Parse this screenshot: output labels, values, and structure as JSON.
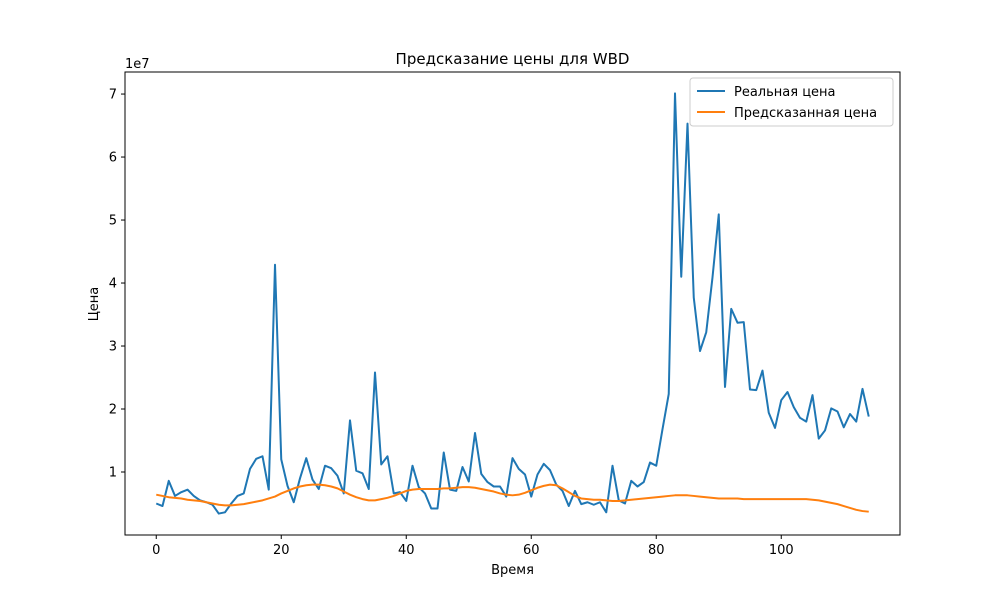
{
  "chart_data": {
    "type": "line",
    "title": "Предсказание цены для WBD",
    "xlabel": "Время",
    "ylabel": "Цена",
    "y_offset_label": "1e7",
    "xlim": [
      -5,
      119
    ],
    "ylim": [
      0,
      7.35
    ],
    "x_ticks": [
      0,
      20,
      40,
      60,
      80,
      100
    ],
    "y_ticks": [
      1,
      2,
      3,
      4,
      5,
      6,
      7
    ],
    "grid": false,
    "legend_position": "top-right",
    "series": [
      {
        "name": "Реальная цена",
        "color": "#1f77b4",
        "values": [
          0.5,
          0.46,
          0.86,
          0.62,
          0.68,
          0.72,
          0.62,
          0.55,
          0.52,
          0.48,
          0.34,
          0.36,
          0.5,
          0.62,
          0.66,
          1.05,
          1.21,
          1.25,
          0.72,
          4.29,
          1.2,
          0.78,
          0.52,
          0.9,
          1.22,
          0.88,
          0.73,
          1.1,
          1.06,
          0.94,
          0.66,
          1.82,
          1.02,
          0.98,
          0.73,
          2.58,
          1.12,
          1.25,
          0.66,
          0.68,
          0.54,
          1.1,
          0.76,
          0.66,
          0.42,
          0.42,
          1.31,
          0.72,
          0.7,
          1.08,
          0.85,
          1.62,
          0.97,
          0.84,
          0.77,
          0.77,
          0.61,
          1.22,
          1.05,
          0.96,
          0.61,
          0.96,
          1.13,
          1.03,
          0.8,
          0.7,
          0.46,
          0.7,
          0.49,
          0.52,
          0.48,
          0.52,
          0.36,
          1.1,
          0.55,
          0.5,
          0.86,
          0.77,
          0.84,
          1.15,
          1.1,
          1.68,
          2.24,
          7.01,
          4.1,
          6.53,
          3.77,
          2.92,
          3.22,
          4.09,
          5.09,
          2.35,
          3.59,
          3.37,
          3.38,
          2.31,
          2.3,
          2.61,
          1.94,
          1.7,
          2.14,
          2.27,
          2.03,
          1.86,
          1.8,
          2.22,
          1.53,
          1.66,
          2.01,
          1.96,
          1.71,
          1.92,
          1.8,
          2.32,
          1.88
        ]
      },
      {
        "name": "Предсказанная цена",
        "color": "#ff7f0e",
        "values": [
          0.64,
          0.62,
          0.6,
          0.59,
          0.58,
          0.56,
          0.55,
          0.54,
          0.52,
          0.5,
          0.48,
          0.47,
          0.47,
          0.48,
          0.49,
          0.51,
          0.53,
          0.55,
          0.58,
          0.61,
          0.66,
          0.7,
          0.74,
          0.77,
          0.79,
          0.8,
          0.8,
          0.79,
          0.77,
          0.74,
          0.69,
          0.64,
          0.6,
          0.57,
          0.55,
          0.55,
          0.57,
          0.59,
          0.62,
          0.66,
          0.7,
          0.72,
          0.73,
          0.73,
          0.73,
          0.73,
          0.74,
          0.74,
          0.75,
          0.76,
          0.76,
          0.75,
          0.73,
          0.71,
          0.69,
          0.66,
          0.64,
          0.63,
          0.64,
          0.67,
          0.71,
          0.75,
          0.78,
          0.8,
          0.79,
          0.74,
          0.68,
          0.62,
          0.58,
          0.57,
          0.56,
          0.56,
          0.55,
          0.54,
          0.54,
          0.55,
          0.56,
          0.57,
          0.58,
          0.59,
          0.6,
          0.61,
          0.62,
          0.63,
          0.63,
          0.63,
          0.62,
          0.61,
          0.6,
          0.59,
          0.58,
          0.58,
          0.58,
          0.58,
          0.57,
          0.57,
          0.57,
          0.57,
          0.57,
          0.57,
          0.57,
          0.57,
          0.57,
          0.57,
          0.57,
          0.56,
          0.55,
          0.53,
          0.51,
          0.49,
          0.46,
          0.43,
          0.4,
          0.38,
          0.37
        ]
      }
    ]
  }
}
